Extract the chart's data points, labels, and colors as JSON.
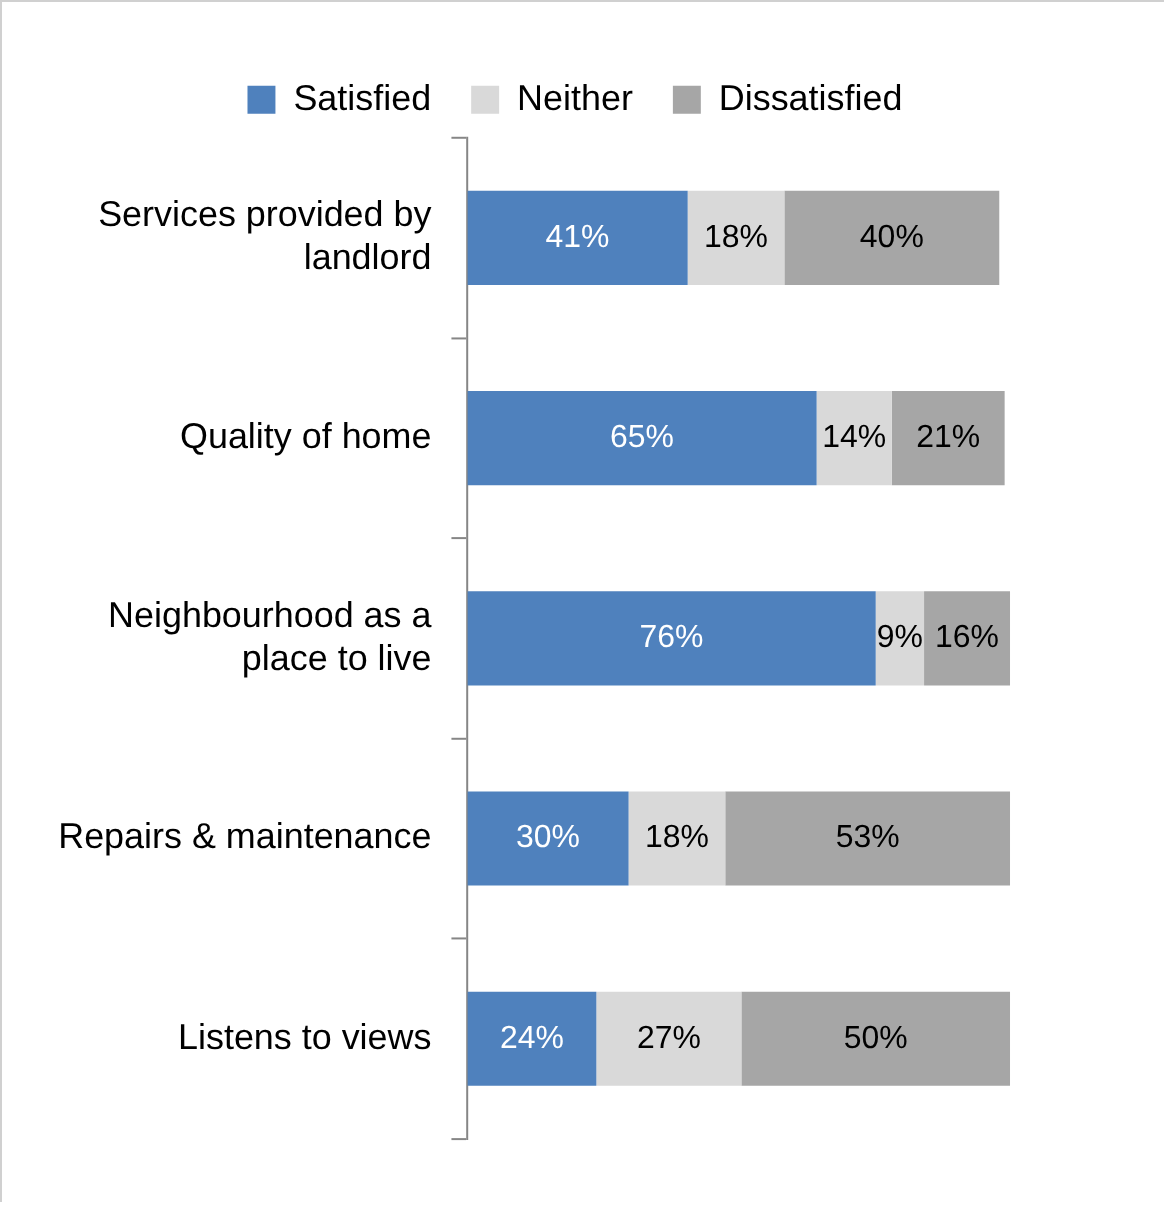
{
  "chart_data": {
    "type": "bar",
    "orientation": "horizontal",
    "stacked": true,
    "data_labels": true,
    "legend": "top",
    "categories": [
      "Services provided by landlord",
      "Quality of home",
      "Neighbourhood as a place to live",
      "Repairs & maintenance",
      "Listens to views"
    ],
    "series": [
      {
        "name": "Satisfied",
        "color": "#4f81bd",
        "values": [
          41,
          65,
          76,
          30,
          24
        ],
        "value_labels": [
          "41%",
          "65%",
          "76%",
          "30%",
          "24%"
        ]
      },
      {
        "name": "Neither",
        "color": "#d9d9d9",
        "values": [
          18,
          14,
          9,
          18,
          27
        ],
        "value_labels": [
          "18%",
          "14%",
          "9%",
          "18%",
          "27%"
        ]
      },
      {
        "name": "Dissatisfied",
        "color": "#a6a6a6",
        "values": [
          40,
          21,
          16,
          53,
          50
        ],
        "value_labels": [
          "40%",
          "21%",
          "16%",
          "53%",
          "50%"
        ]
      }
    ]
  }
}
